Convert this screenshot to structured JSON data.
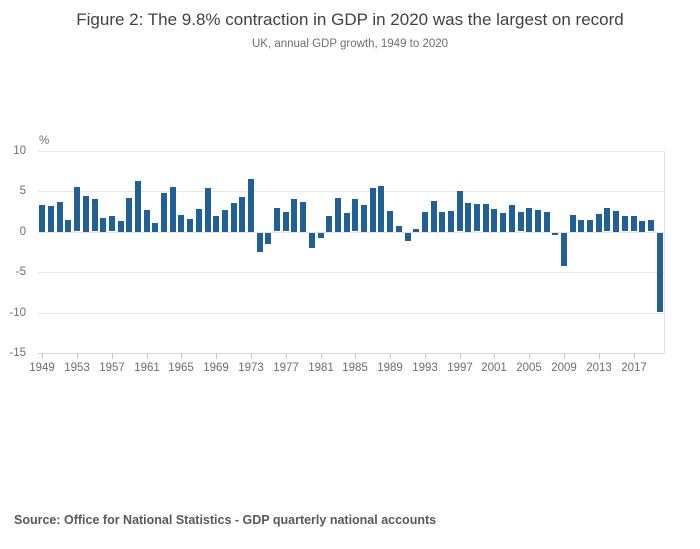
{
  "header": {
    "title": "Figure 2: The 9.8% contraction in GDP in 2020 was the largest on record",
    "subtitle": "UK, annual GDP growth, 1949 to 2020"
  },
  "source": {
    "text": "Source: Office for National Statistics - GDP quarterly national accounts"
  },
  "chart_data": {
    "type": "bar",
    "title": "Figure 2: The 9.8% contraction in GDP in 2020 was the largest on record",
    "subtitle": "UK, annual GDP growth, 1949 to 2020",
    "xlabel": "",
    "ylabel": "%",
    "ylim": [
      -15,
      10
    ],
    "yticks": [
      10,
      5,
      0,
      -5,
      -10,
      -15
    ],
    "xticks": [
      1949,
      1953,
      1957,
      1961,
      1965,
      1969,
      1973,
      1977,
      1981,
      1985,
      1989,
      1993,
      1997,
      2001,
      2005,
      2009,
      2013,
      2017
    ],
    "grid": true,
    "legend_position": "none",
    "categories": [
      1949,
      1950,
      1951,
      1952,
      1953,
      1954,
      1955,
      1956,
      1957,
      1958,
      1959,
      1960,
      1961,
      1962,
      1963,
      1964,
      1965,
      1966,
      1967,
      1968,
      1969,
      1970,
      1971,
      1972,
      1973,
      1974,
      1975,
      1976,
      1977,
      1978,
      1979,
      1980,
      1981,
      1982,
      1983,
      1984,
      1985,
      1986,
      1987,
      1988,
      1989,
      1990,
      1991,
      1992,
      1993,
      1994,
      1995,
      1996,
      1997,
      1998,
      1999,
      2000,
      2001,
      2002,
      2003,
      2004,
      2005,
      2006,
      2007,
      2008,
      2009,
      2010,
      2011,
      2012,
      2013,
      2014,
      2015,
      2016,
      2017,
      2018,
      2019,
      2020
    ],
    "values": [
      3.3,
      3.2,
      3.7,
      1.5,
      5.5,
      4.4,
      4.0,
      1.7,
      1.9,
      1.3,
      4.2,
      6.3,
      2.7,
      1.1,
      4.8,
      5.6,
      2.1,
      1.6,
      2.8,
      5.4,
      2.0,
      2.7,
      3.6,
      4.3,
      6.5,
      -2.3,
      -1.4,
      2.9,
      2.4,
      4.1,
      3.7,
      -1.9,
      -0.6,
      2.0,
      4.2,
      2.3,
      4.0,
      3.3,
      5.4,
      5.7,
      2.6,
      0.7,
      -1.0,
      0.4,
      2.5,
      3.8,
      2.5,
      2.6,
      5.0,
      3.6,
      3.4,
      3.5,
      2.8,
      2.3,
      3.3,
      2.4,
      3.0,
      2.7,
      2.5,
      -0.3,
      -4.1,
      2.1,
      1.5,
      1.5,
      2.2,
      2.9,
      2.6,
      1.9,
      1.9,
      1.3,
      1.4,
      -9.8
    ],
    "colors": {
      "bar": "#206095",
      "gridline": "#e4e4e4",
      "axis_line": "#cdd7e0",
      "tick_mark": "#b9cbdb",
      "axis_text": "#6e6e6e",
      "title_text": "#414042",
      "subtitle_text": "#6e6e6e",
      "source_text": "#58595b"
    }
  }
}
